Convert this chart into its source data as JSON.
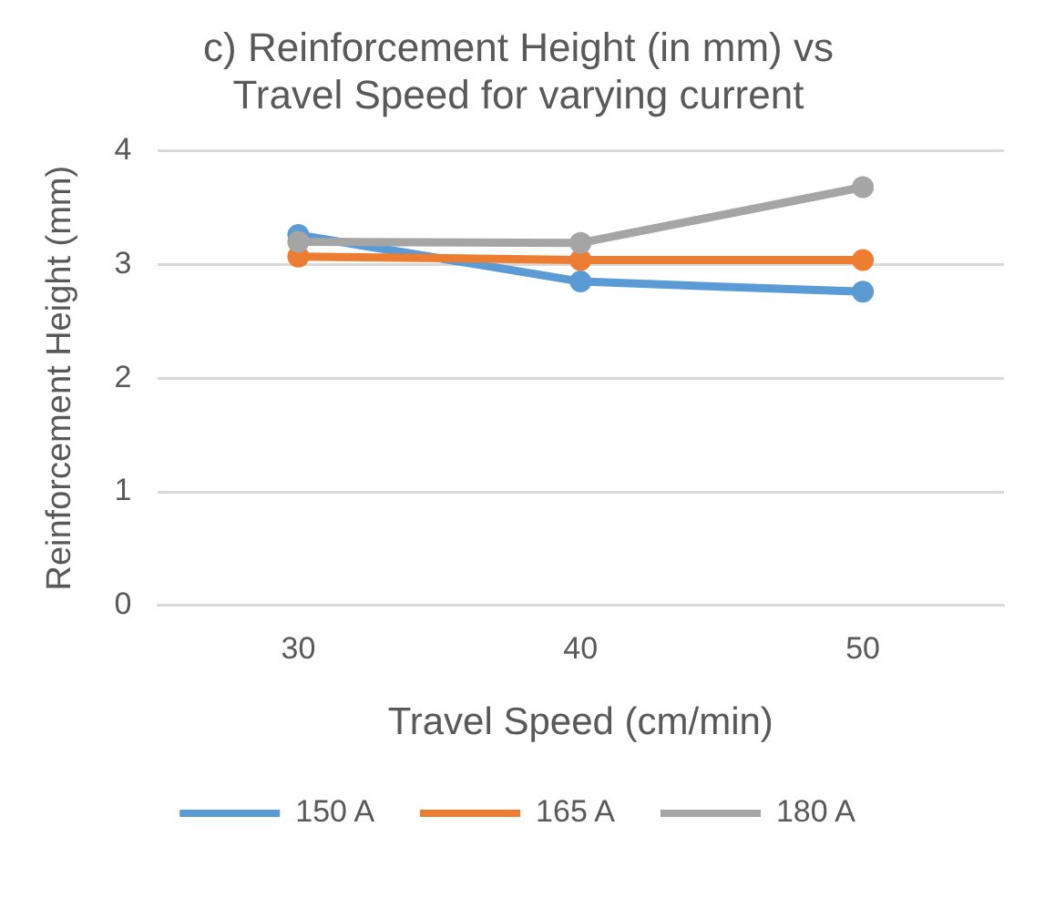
{
  "chart_data": {
    "type": "line",
    "title": "c) Reinforcement Height (in mm) vs Travel Speed for varying current",
    "xlabel": "Travel Speed (cm/min)",
    "ylabel": "Reinforcement Height (mm)",
    "categories": [
      "30",
      "40",
      "50"
    ],
    "series": [
      {
        "name": "150 A",
        "color": "#5b9bd5",
        "values": [
          3.26,
          2.85,
          2.76
        ]
      },
      {
        "name": "165 A",
        "color": "#ed7d31",
        "values": [
          3.07,
          3.04,
          3.04
        ]
      },
      {
        "name": "180 A",
        "color": "#a5a5a5",
        "values": [
          3.2,
          3.19,
          3.68
        ]
      }
    ],
    "ylim": [
      0,
      4
    ],
    "yticks": [
      0,
      1,
      2,
      3,
      4
    ],
    "grid": "y",
    "legend": "bottom",
    "marker": "circle",
    "line_style": "solid"
  }
}
